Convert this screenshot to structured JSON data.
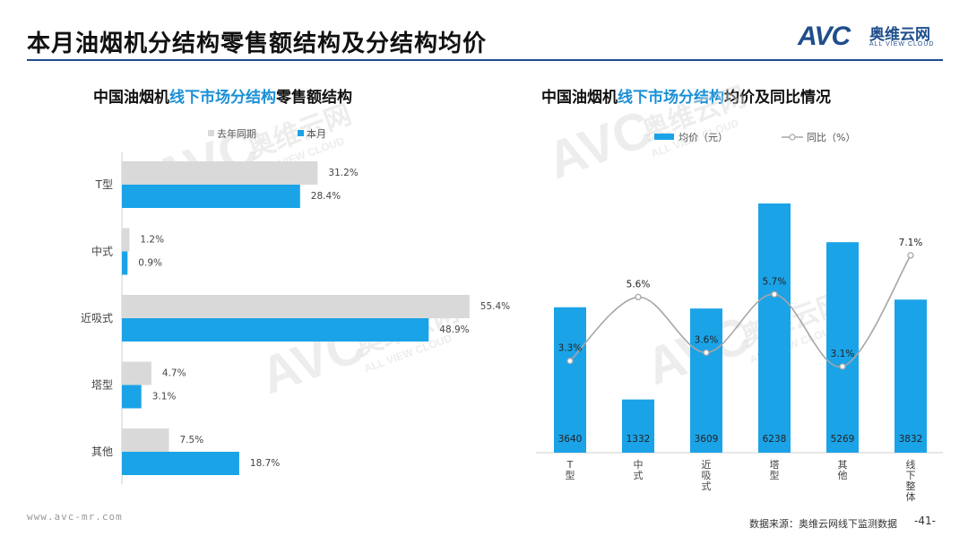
{
  "page": {
    "title": "本月油烟机分结构零售额结构及分结构均价",
    "logo_mark": "AVC",
    "logo_cn": "奥维云网",
    "logo_en": "ALL VIEW CLOUD",
    "footer_url": "www.avc-mr.com",
    "footer_source": "数据来源：奥维云网线下监测数据",
    "page_number": "-41-"
  },
  "watermark": {
    "mark": "AVC",
    "cn": "奥维云网",
    "en": "ALL VIEW CLOUD"
  },
  "left_chart_title": {
    "prefix": "中国油烟机",
    "highlight": "线下市场分结构",
    "suffix": "零售额结构"
  },
  "right_chart_title": {
    "prefix": "中国油烟机",
    "highlight": "线下市场分结构",
    "suffix": "均价及同比情况"
  },
  "chart_data": [
    {
      "type": "bar",
      "orientation": "horizontal",
      "title": "中国油烟机线下市场分结构零售额结构",
      "categories": [
        "T型",
        "中式",
        "近吸式",
        "塔型",
        "其他"
      ],
      "series": [
        {
          "name": "去年同期",
          "color": "#d9d9d9",
          "values": [
            31.2,
            1.2,
            55.4,
            4.7,
            7.5
          ],
          "labels": [
            "31.2%",
            "1.2%",
            "55.4%",
            "4.7%",
            "7.5%"
          ]
        },
        {
          "name": "本月",
          "color": "#1ba3e8",
          "values": [
            28.4,
            0.9,
            48.9,
            3.1,
            18.7
          ],
          "labels": [
            "28.4%",
            "0.9%",
            "48.9%",
            "3.1%",
            "18.7%"
          ]
        }
      ],
      "xlim": [
        0,
        60
      ],
      "legend": "top-center"
    },
    {
      "type": "bar",
      "title": "中国油烟机线下市场分结构均价及同比情况",
      "categories": [
        "T型",
        "中式",
        "近吸式",
        "塔型",
        "其他",
        "线下整体"
      ],
      "series": [
        {
          "name": "均价（元）",
          "kind": "bar",
          "color": "#1ba3e8",
          "values": [
            3640,
            1332,
            3609,
            6238,
            5269,
            3832
          ],
          "labels": [
            "3640",
            "1332",
            "3609",
            "6238",
            "5269",
            "3832"
          ]
        },
        {
          "name": "同比（%）",
          "kind": "line",
          "color": "#a6a6a6",
          "values": [
            3.3,
            5.6,
            3.6,
            5.7,
            3.1,
            7.1
          ],
          "labels": [
            "3.3%",
            "5.6%",
            "3.6%",
            "5.7%",
            "3.1%",
            "7.1%"
          ]
        }
      ],
      "ylim": [
        0,
        7000
      ],
      "y2lim": [
        0,
        9
      ],
      "legend": "top-left"
    }
  ]
}
